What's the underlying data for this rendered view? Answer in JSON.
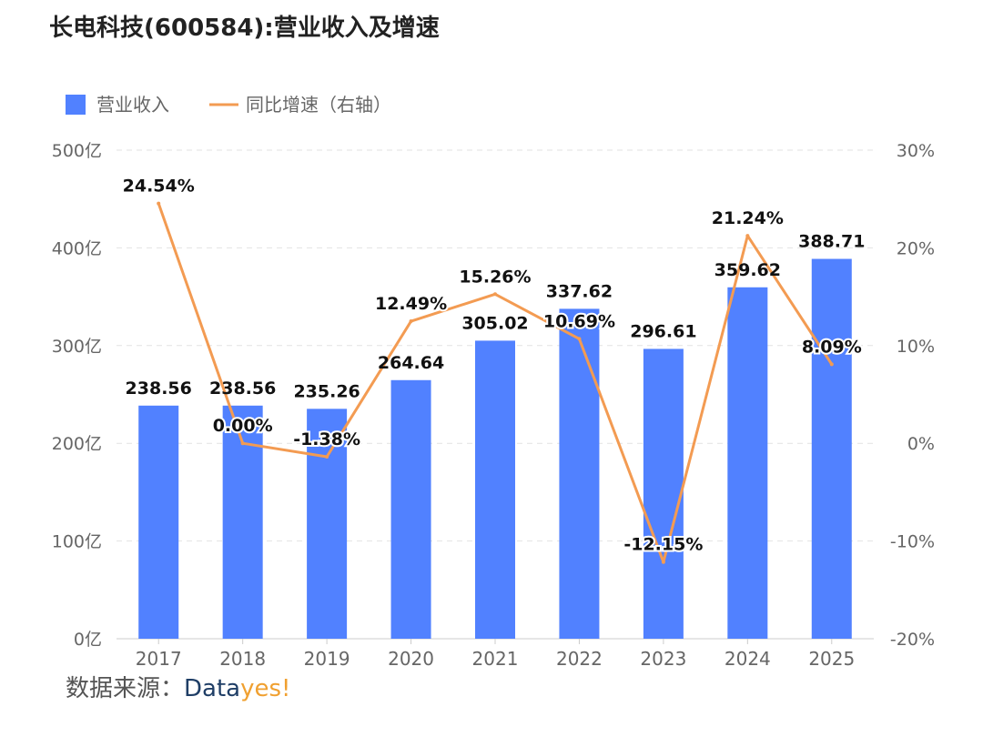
{
  "title": "长电科技(600584):营业收入及增速",
  "source": {
    "label": "数据来源：",
    "brand_part1": "Data",
    "brand_part2": "yes!"
  },
  "colors": {
    "bar": "#5181ff",
    "line": "#f39b52",
    "grid": "#e2e2e2",
    "axis_text": "#666666",
    "label_text": "#111111"
  },
  "chart_data": {
    "type": "bar",
    "categories": [
      "2017",
      "2018",
      "2019",
      "2020",
      "2021",
      "2022",
      "2023",
      "2024",
      "2025"
    ],
    "series": [
      {
        "name": "营业收入",
        "type": "bar",
        "axis": "left",
        "values": [
          238.56,
          238.56,
          235.26,
          264.64,
          305.02,
          337.62,
          296.61,
          359.62,
          388.71
        ],
        "labels": [
          "238.56",
          "238.56",
          "235.26",
          "264.64",
          "305.02",
          "337.62",
          "296.61",
          "359.62",
          "388.71"
        ]
      },
      {
        "name": "同比增速（右轴）",
        "type": "line",
        "axis": "right",
        "values": [
          24.54,
          0.0,
          -1.38,
          12.49,
          15.26,
          10.69,
          -12.15,
          21.24,
          8.09
        ],
        "labels": [
          "24.54%",
          "0.00%",
          "-1.38%",
          "12.49%",
          "15.26%",
          "10.69%",
          "-12.15%",
          "21.24%",
          "8.09%"
        ]
      }
    ],
    "y_left": {
      "range": [
        0,
        500
      ],
      "ticks": [
        0,
        100,
        200,
        300,
        400,
        500
      ],
      "tick_labels": [
        "0亿",
        "100亿",
        "200亿",
        "300亿",
        "400亿",
        "500亿"
      ]
    },
    "y_right": {
      "range": [
        -20,
        30
      ],
      "ticks": [
        -20,
        -10,
        0,
        10,
        20,
        30
      ],
      "tick_labels": [
        "-20%",
        "-10%",
        "0%",
        "10%",
        "20%",
        "30%"
      ]
    },
    "grid": true,
    "legend": "top-left"
  }
}
